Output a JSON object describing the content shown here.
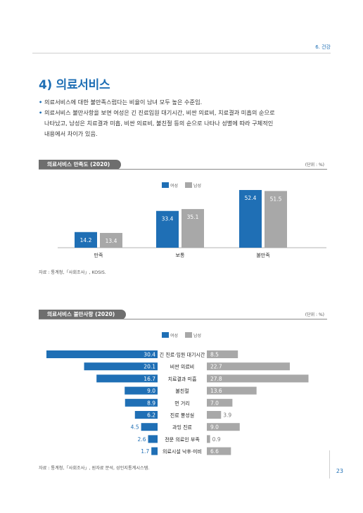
{
  "header": {
    "section": "6. 건강"
  },
  "title": "4) 의료서비스",
  "bullets": [
    "의료서비스에 대한 불만족스럽다는 비율이 남녀 모두 높은 수준임.",
    "의료서비스 불만사항을 보면 여성은 긴 진료입원 대기시간, 비싼 의료비, 치료결과 미흡의 순으로",
    "나타났고, 남성은 치료결과 미흡, 비싼 의료비, 불친절 등의 순으로 나타나 성별에 따라 구체적인",
    "내용에서 차이가 있음."
  ],
  "colors": {
    "female": "#1f6fb5",
    "male": "#a8a8a8",
    "accent": "#1f6fb5"
  },
  "chart1": {
    "heading": "의료서비스 만족도 (2020)",
    "unit": "(단위 : %)",
    "legend": {
      "female": "여성",
      "male": "남성"
    },
    "source": "자료 : 통계청,「사회조사」, KOSIS."
  },
  "chart2": {
    "heading": "의료서비스 불만사항 (2020)",
    "unit": "(단위 : %)",
    "legend": {
      "female": "여성",
      "male": "남성"
    },
    "source": "자료 : 통계청,「사회조사」, 원자료 분석, 성인지통계시스템."
  },
  "chart_data": [
    {
      "type": "bar",
      "title": "의료서비스 만족도 (2020)",
      "categories": [
        "만족",
        "보통",
        "불만족"
      ],
      "series": [
        {
          "name": "여성",
          "values": [
            14.2,
            33.4,
            52.4
          ]
        },
        {
          "name": "남성",
          "values": [
            13.4,
            35.1,
            51.5
          ]
        }
      ],
      "value_labels": {
        "여성": [
          "14.2",
          "33.4",
          "52.4"
        ],
        "남성": [
          "13.4",
          "35.1",
          "51.5"
        ]
      },
      "ylim": [
        0,
        60
      ],
      "grid": false,
      "legend": "top-center"
    },
    {
      "type": "bar",
      "orientation": "horizontal-butterfly",
      "title": "의료서비스 불만사항 (2020)",
      "categories": [
        "긴 진료·입원 대기시간",
        "비싼 의료비",
        "치료결과 미흡",
        "불친절",
        "먼 거리",
        "진료 불성실",
        "과잉 진료",
        "전문 의료인 부족",
        "의료시설 낙후·미비"
      ],
      "series": [
        {
          "name": "여성",
          "values": [
            30.4,
            20.1,
            16.7,
            9.0,
            8.9,
            6.2,
            4.5,
            2.6,
            1.7
          ]
        },
        {
          "name": "남성",
          "values": [
            8.5,
            22.7,
            27.8,
            13.6,
            7.0,
            3.9,
            9.0,
            0.9,
            6.6
          ]
        }
      ],
      "value_labels": {
        "여성": [
          "30.4",
          "20.1",
          "16.7",
          "9.0",
          "8.9",
          "6.2",
          "4.5",
          "2.6",
          "1.7"
        ],
        "남성": [
          "8.5",
          "22.7",
          "27.8",
          "13.6",
          "7.0",
          "3.9",
          "9.0",
          "0.9",
          "6.6"
        ]
      },
      "xlim": [
        0,
        35
      ],
      "grid": false,
      "legend": "top-center"
    }
  ],
  "page_number": "23"
}
